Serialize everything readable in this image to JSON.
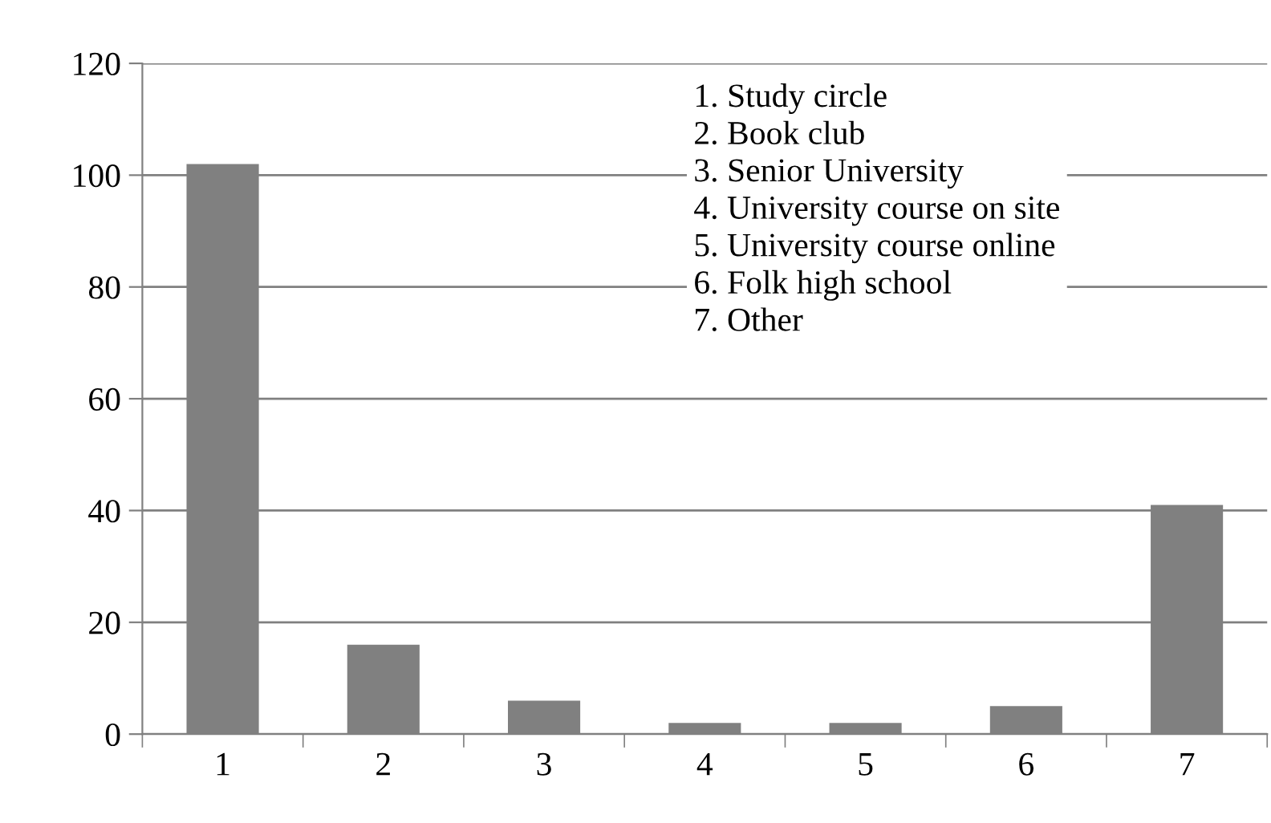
{
  "chart_data": {
    "type": "bar",
    "categories": [
      "1",
      "2",
      "3",
      "4",
      "5",
      "6",
      "7"
    ],
    "values": [
      102,
      16,
      6,
      2,
      2,
      5,
      41
    ],
    "color": "#808080",
    "ylim": [
      0,
      120
    ],
    "yticks": [
      0,
      20,
      40,
      60,
      80,
      100,
      120
    ],
    "grid": "y",
    "legend": false,
    "annotations": [
      "1. Study circle\n2. Book club\n3. Senior University\n4. University course on site\n5. University course online\n6. Folk high school\n7. Other"
    ]
  }
}
